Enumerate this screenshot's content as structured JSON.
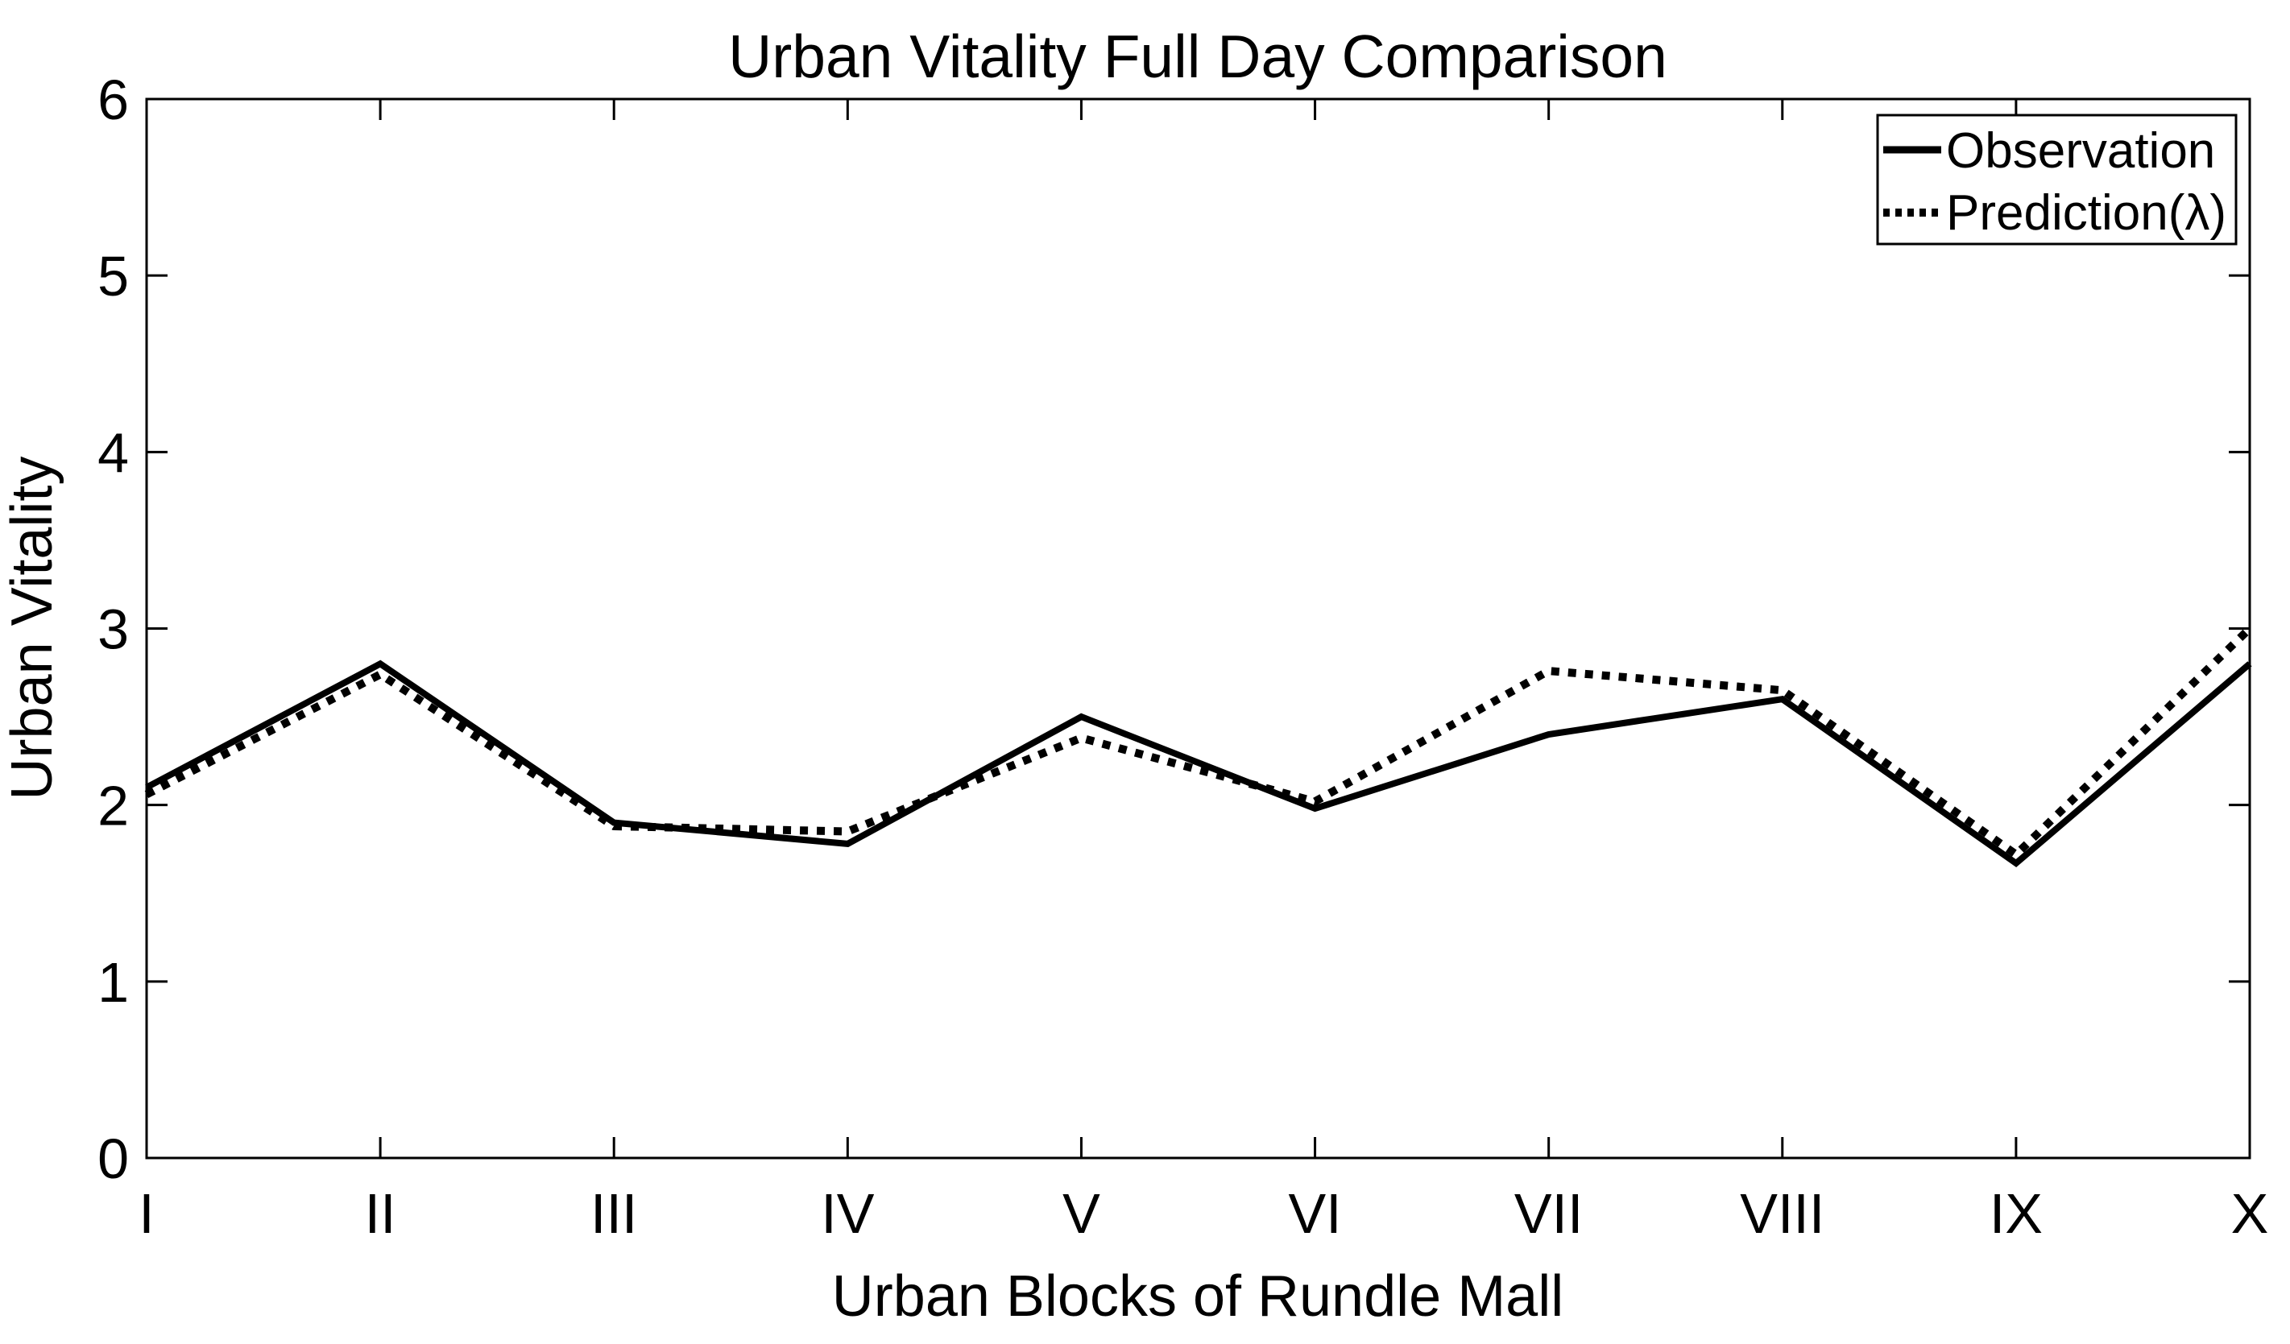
{
  "figure": {
    "background_color": "#ffffff",
    "foreground_color": "#000000"
  },
  "chart_data": {
    "type": "line",
    "title": "Urban Vitality Full Day Comparison",
    "xlabel": "Urban Blocks of Rundle Mall",
    "ylabel": "Urban Vitality",
    "categories": [
      "I",
      "II",
      "III",
      "IV",
      "V",
      "VI",
      "VII",
      "VIII",
      "IX",
      "X"
    ],
    "yticks": [
      "0",
      "1",
      "2",
      "3",
      "4",
      "5",
      "6"
    ],
    "ylim": [
      0,
      6
    ],
    "grid": false,
    "legend_position": "top-right",
    "series": [
      {
        "name": "Observation",
        "style": "solid",
        "color": "#000000",
        "values": [
          2.1,
          2.8,
          1.9,
          1.78,
          2.5,
          1.98,
          2.4,
          2.6,
          1.67,
          2.8
        ]
      },
      {
        "name": "Prediction(λ)",
        "style": "dotted",
        "color": "#000000",
        "values": [
          2.06,
          2.74,
          1.88,
          1.85,
          2.38,
          2.02,
          2.76,
          2.65,
          1.72,
          3.0
        ]
      }
    ]
  }
}
